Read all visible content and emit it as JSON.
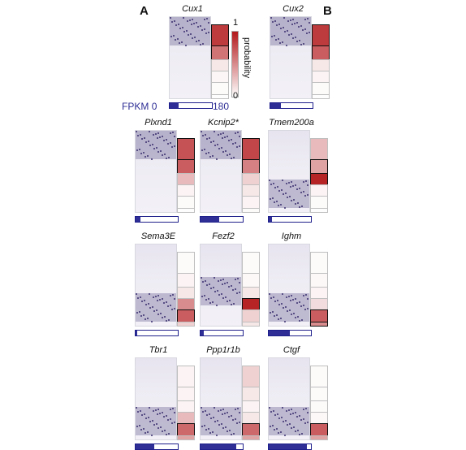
{
  "panels": {
    "a": "A",
    "b": "B"
  },
  "legend": {
    "max": "1",
    "min": "0",
    "label": "probability"
  },
  "fpkm": {
    "label": "FPKM",
    "min": "0",
    "max": "180"
  },
  "colors": {
    "heat_max": "#b2181b",
    "bar_fill": "#2e2e96",
    "stain": "#3a2f6e"
  },
  "tiles": [
    {
      "gene": "Cux1",
      "fpkm_fraction": 0.22,
      "heat": [
        0.85,
        0.6,
        0.1,
        0.04,
        0.02,
        0.01
      ],
      "highlight": [
        0,
        1
      ]
    },
    {
      "gene": "Cux2",
      "fpkm_fraction": 0.25,
      "heat": [
        0.85,
        0.7,
        0.1,
        0.05,
        0.02,
        0.01
      ],
      "highlight": [
        0,
        1
      ]
    },
    {
      "gene": "Plxnd1",
      "fpkm_fraction": 0.12,
      "heat": [
        0.75,
        0.7,
        0.3,
        0.05,
        0.02,
        0.01
      ],
      "highlight": [
        0,
        1
      ]
    },
    {
      "gene": "Kcnip2*",
      "fpkm_fraction": 0.45,
      "heat": [
        0.8,
        0.55,
        0.2,
        0.1,
        0.05,
        0.02
      ],
      "highlight": [
        0,
        1
      ]
    },
    {
      "gene": "Tmem200a",
      "fpkm_fraction": 0.08,
      "heat": [
        0.3,
        0.4,
        0.95,
        0.05,
        0.02,
        0.01
      ],
      "highlight": [
        1,
        2
      ]
    },
    {
      "gene": "Sema3E",
      "fpkm_fraction": 0.03,
      "heat": [
        0.02,
        0.05,
        0.1,
        0.5,
        0.7,
        0.2
      ],
      "highlight": [
        4
      ]
    },
    {
      "gene": "Fezf2",
      "fpkm_fraction": 0.08,
      "heat": [
        0.02,
        0.03,
        0.1,
        0.95,
        0.2,
        0.1
      ],
      "highlight": [
        3
      ]
    },
    {
      "gene": "Ighm",
      "fpkm_fraction": 0.5,
      "heat": [
        0.02,
        0.03,
        0.05,
        0.15,
        0.7,
        0.5
      ],
      "highlight": [
        4,
        5
      ]
    },
    {
      "gene": "Tbr1",
      "fpkm_fraction": 0.45,
      "heat": [
        0.05,
        0.05,
        0.05,
        0.3,
        0.65,
        0.4
      ],
      "highlight": [
        4
      ]
    },
    {
      "gene": "Ppp1r1b",
      "fpkm_fraction": 0.85,
      "heat": [
        0.2,
        0.1,
        0.05,
        0.1,
        0.65,
        0.4
      ],
      "highlight": [
        4
      ]
    },
    {
      "gene": "Ctgf",
      "fpkm_fraction": 0.9,
      "heat": [
        0.02,
        0.02,
        0.02,
        0.03,
        0.7,
        0.4
      ],
      "highlight": [
        4
      ]
    }
  ]
}
